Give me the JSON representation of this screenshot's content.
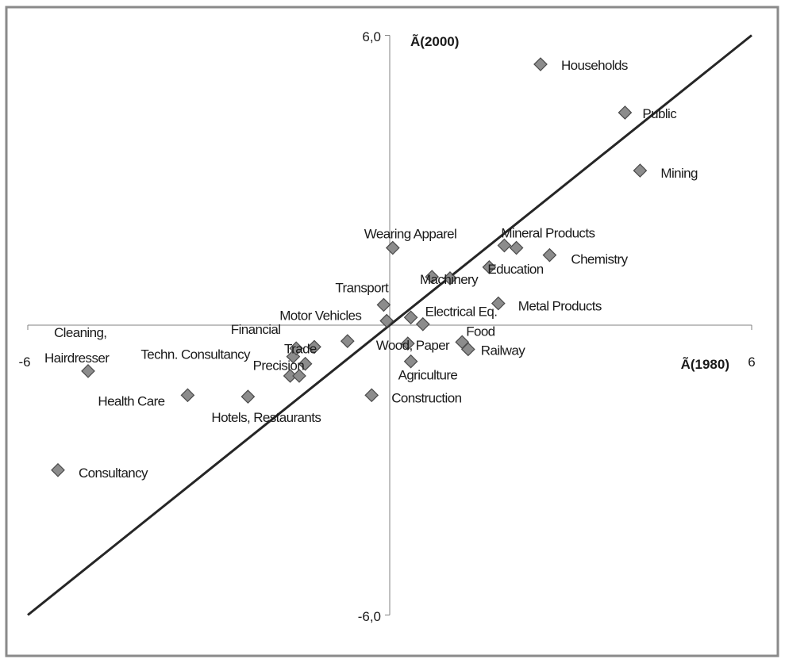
{
  "chart_data": {
    "type": "scatter",
    "xlabel": "Ã(1980)",
    "ylabel": "Ã(2000)",
    "xlim": [
      -6,
      6
    ],
    "ylim": [
      -6,
      6
    ],
    "x_tick_labels": [
      "-6",
      "6"
    ],
    "y_tick_labels": [
      "6,0",
      "-6,0"
    ],
    "reference_line": {
      "from": [
        -6,
        -6
      ],
      "to": [
        6,
        6
      ]
    },
    "grid": false,
    "legend": "none",
    "colors": {
      "marker_fill": "#8c8c8c",
      "marker_stroke": "#4a4a4a",
      "line": "#262626",
      "axis": "#808080"
    },
    "points": [
      {
        "label": "Households",
        "x": 2.5,
        "y": 5.4
      },
      {
        "label": "Public",
        "x": 3.9,
        "y": 4.4
      },
      {
        "label": "Mining",
        "x": 4.15,
        "y": 3.2
      },
      {
        "label": "Wearing Apparel",
        "x": 0.05,
        "y": 1.6
      },
      {
        "label": "Mineral Products",
        "x": 1.9,
        "y": 1.65
      },
      {
        "label": "Chemistry",
        "x": 2.65,
        "y": 1.45
      },
      {
        "label": "Education",
        "x": 1.65,
        "y": 1.2
      },
      {
        "label": "",
        "x": 2.1,
        "y": 1.6
      },
      {
        "label": "Machinery",
        "x": 1.0,
        "y": 0.97
      },
      {
        "label": "",
        "x": 0.7,
        "y": 1.0
      },
      {
        "label": "Metal Products",
        "x": 1.8,
        "y": 0.45
      },
      {
        "label": "Transport",
        "x": -0.1,
        "y": 0.42
      },
      {
        "label": "Motor Vehicles",
        "x": -0.05,
        "y": 0.09
      },
      {
        "label": "Electrical Eq.",
        "x": 0.35,
        "y": 0.16
      },
      {
        "label": "",
        "x": 0.55,
        "y": 0.02
      },
      {
        "label": "Food",
        "x": 1.2,
        "y": -0.35
      },
      {
        "label": "Railway",
        "x": 1.3,
        "y": -0.5
      },
      {
        "label": "Wood, Paper",
        "x": 0.3,
        "y": -0.38
      },
      {
        "label": "Agriculture",
        "x": 0.35,
        "y": -0.75
      },
      {
        "label": "Construction",
        "x": -0.3,
        "y": -1.45
      },
      {
        "label": "Financial",
        "x": -0.7,
        "y": -0.33
      },
      {
        "label": "Trade",
        "x": -1.25,
        "y": -0.45
      },
      {
        "label": "Precision",
        "x": -1.4,
        "y": -0.8
      },
      {
        "label": "Techn. Consultancy",
        "x": -1.6,
        "y": -0.65
      },
      {
        "label": "",
        "x": -1.55,
        "y": -0.48
      },
      {
        "label": "",
        "x": -1.65,
        "y": -1.05
      },
      {
        "label": "",
        "x": -1.5,
        "y": -1.05
      },
      {
        "label": "Hotels, Restaurants",
        "x": -2.35,
        "y": -1.48
      },
      {
        "label": "Health Care",
        "x": -3.35,
        "y": -1.45
      },
      {
        "label": "Cleaning,\nHairdresser",
        "x": -5.0,
        "y": -0.95
      },
      {
        "label": "Consultancy",
        "x": -5.5,
        "y": -3.0
      }
    ]
  }
}
